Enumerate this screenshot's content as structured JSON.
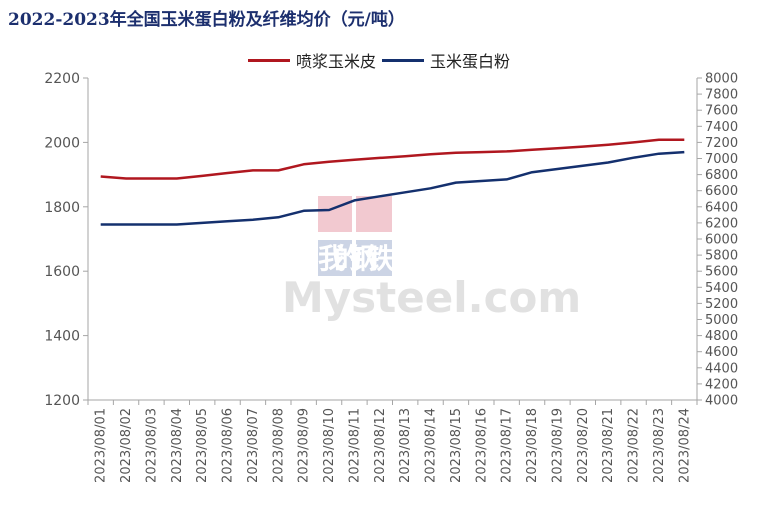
{
  "page": {
    "title": "2022-2023年全国玉米蛋白粉及纤维均价（元/吨）"
  },
  "watermark": {
    "brand_cn": "我的钢铁",
    "brand_en": "Mysteel.com"
  },
  "colors": {
    "series_red": "#b0171f",
    "series_blue": "#14306e",
    "axis": "#a6a6a6",
    "text": "#555555"
  },
  "chart_data": {
    "type": "line",
    "title": "2022-2023年全国玉米蛋白粉及纤维均价（元/吨）",
    "x": [
      "2023/08/01",
      "2023/08/02",
      "2023/08/03",
      "2023/08/04",
      "2023/08/05",
      "2023/08/06",
      "2023/08/07",
      "2023/08/08",
      "2023/08/09",
      "2023/08/10",
      "2023/08/11",
      "2023/08/12",
      "2023/08/13",
      "2023/08/14",
      "2023/08/15",
      "2023/08/16",
      "2023/08/17",
      "2023/08/18",
      "2023/08/19",
      "2023/08/20",
      "2023/08/21",
      "2023/08/22",
      "2023/08/23",
      "2023/08/24"
    ],
    "y_left": {
      "range": [
        1200,
        2200
      ],
      "ticks": [
        1200,
        1400,
        1600,
        1800,
        2000,
        2200
      ]
    },
    "y_right": {
      "range": [
        4000,
        8000
      ],
      "ticks": [
        4000,
        4200,
        4400,
        4600,
        4800,
        5000,
        5200,
        5400,
        5600,
        5800,
        6000,
        6200,
        6400,
        6600,
        6800,
        7000,
        7200,
        7400,
        7600,
        7800,
        8000
      ]
    },
    "legend_position": "top-center",
    "grid": false,
    "series": [
      {
        "name": "喷浆玉米皮",
        "axis": "left",
        "color": "#b0171f",
        "values": [
          1894,
          1888,
          1888,
          1888,
          1896,
          1905,
          1913,
          1913,
          1932,
          1940,
          1946,
          1952,
          1957,
          1963,
          1968,
          1970,
          1972,
          1977,
          1982,
          1987,
          1993,
          2000,
          2008,
          2008
        ]
      },
      {
        "name": "玉米蛋白粉",
        "axis": "right",
        "color": "#14306e",
        "values": [
          6180,
          6180,
          6180,
          6180,
          6200,
          6220,
          6240,
          6270,
          6350,
          6360,
          6480,
          6530,
          6580,
          6630,
          6700,
          6720,
          6740,
          6830,
          6870,
          6910,
          6950,
          7010,
          7060,
          7080
        ]
      }
    ]
  }
}
